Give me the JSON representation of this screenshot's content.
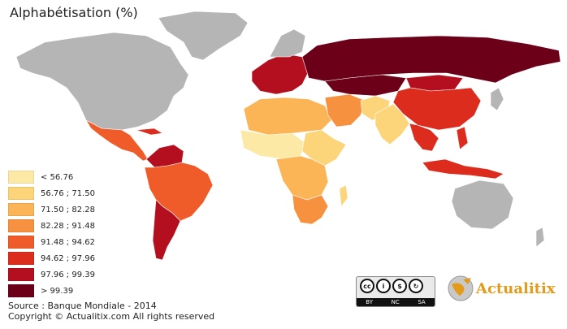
{
  "title": "Alphabétisation (%)",
  "colors": {
    "no_data": "#b5b5b5",
    "ocean": "#ffffff",
    "c1": "#fde9a6",
    "c2": "#fcd47a",
    "c3": "#fbb456",
    "c4": "#f6923f",
    "c5": "#ef5c2a",
    "c6": "#db2c1e",
    "c7": "#b30f1f",
    "c8": "#6c0018"
  },
  "legend": [
    {
      "label": "< 56.76",
      "color": "#fde9a6"
    },
    {
      "label": "56.76 ; 71.50",
      "color": "#fcd47a"
    },
    {
      "label": "71.50 ; 82.28",
      "color": "#fbb456"
    },
    {
      "label": "82.28 ; 91.48",
      "color": "#f6923f"
    },
    {
      "label": "91.48 ; 94.62",
      "color": "#ef5c2a"
    },
    {
      "label": "94.62 ; 97.96",
      "color": "#db2c1e"
    },
    {
      "label": "97.96 ; 99.39",
      "color": "#b30f1f"
    },
    {
      "label": "> 99.39",
      "color": "#6c0018"
    }
  ],
  "source": {
    "line1": "Source : Banque Mondiale - 2014",
    "line2": "Copyright © Actualitix.com All rights reserved"
  },
  "license": {
    "cc": "cc",
    "by": "BY",
    "nc": "NC",
    "sa": "SA"
  },
  "logo_text": "Actualitix"
}
